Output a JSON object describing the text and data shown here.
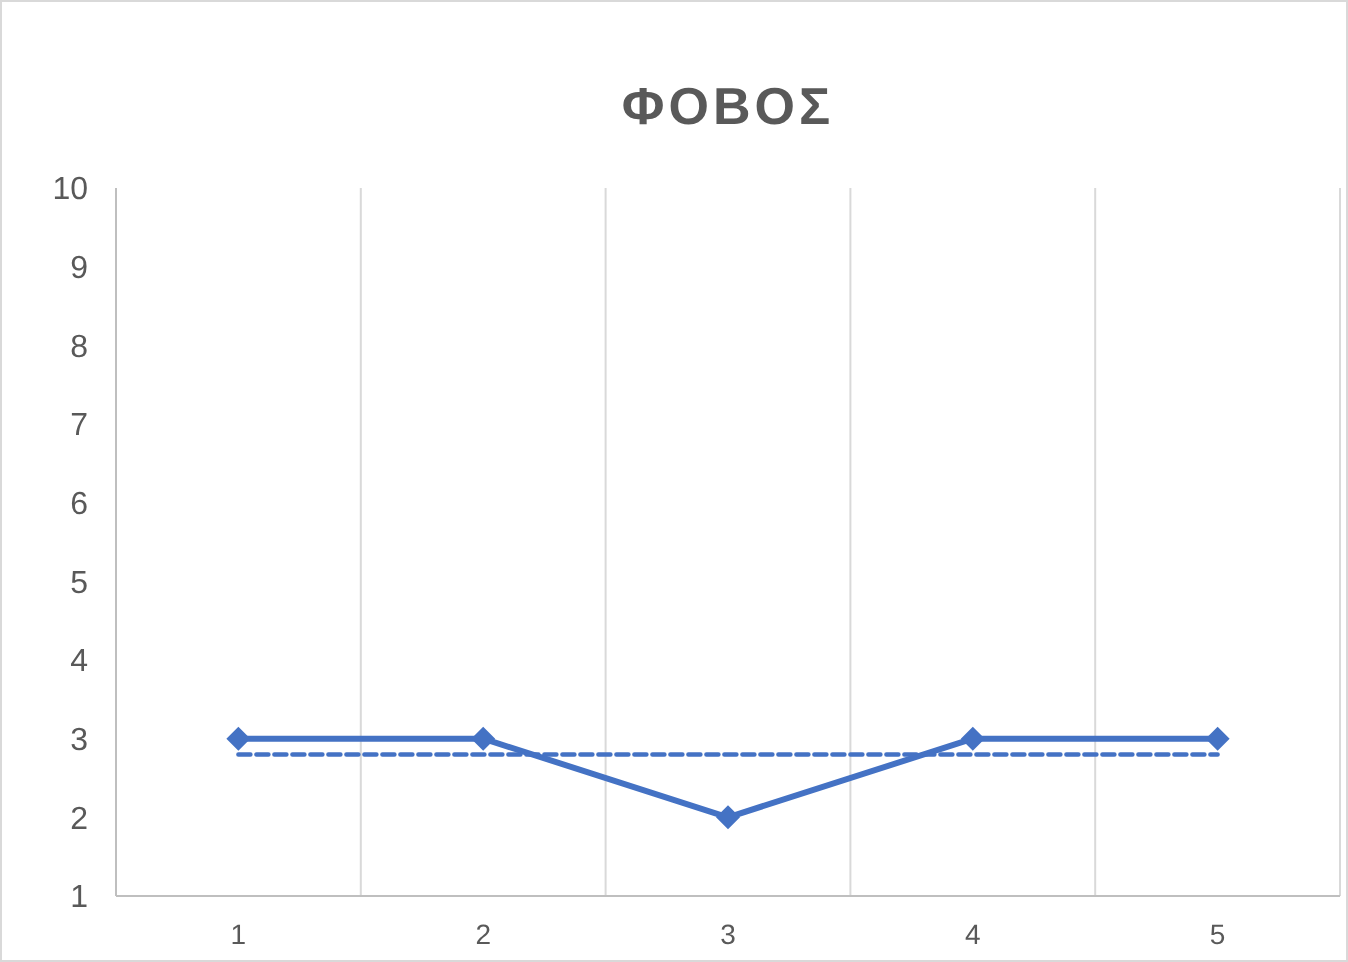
{
  "chart_data": {
    "type": "line",
    "title": "ΦΟΒΟΣ",
    "categories": [
      "1",
      "2",
      "3",
      "4",
      "5"
    ],
    "series": [
      {
        "color": "#4472c4",
        "values": [
          3,
          3,
          2,
          3,
          3
        ],
        "marker": "diamond",
        "line_style": "solid"
      },
      {
        "color": "#4472c4",
        "values": [
          2.8,
          2.8,
          2.8,
          2.8,
          2.8
        ],
        "marker": "none",
        "line_style": "dashed"
      }
    ],
    "ylim": [
      1,
      10
    ],
    "yticks": [
      1,
      2,
      3,
      4,
      5,
      6,
      7,
      8,
      9,
      10
    ],
    "grid": "x"
  }
}
